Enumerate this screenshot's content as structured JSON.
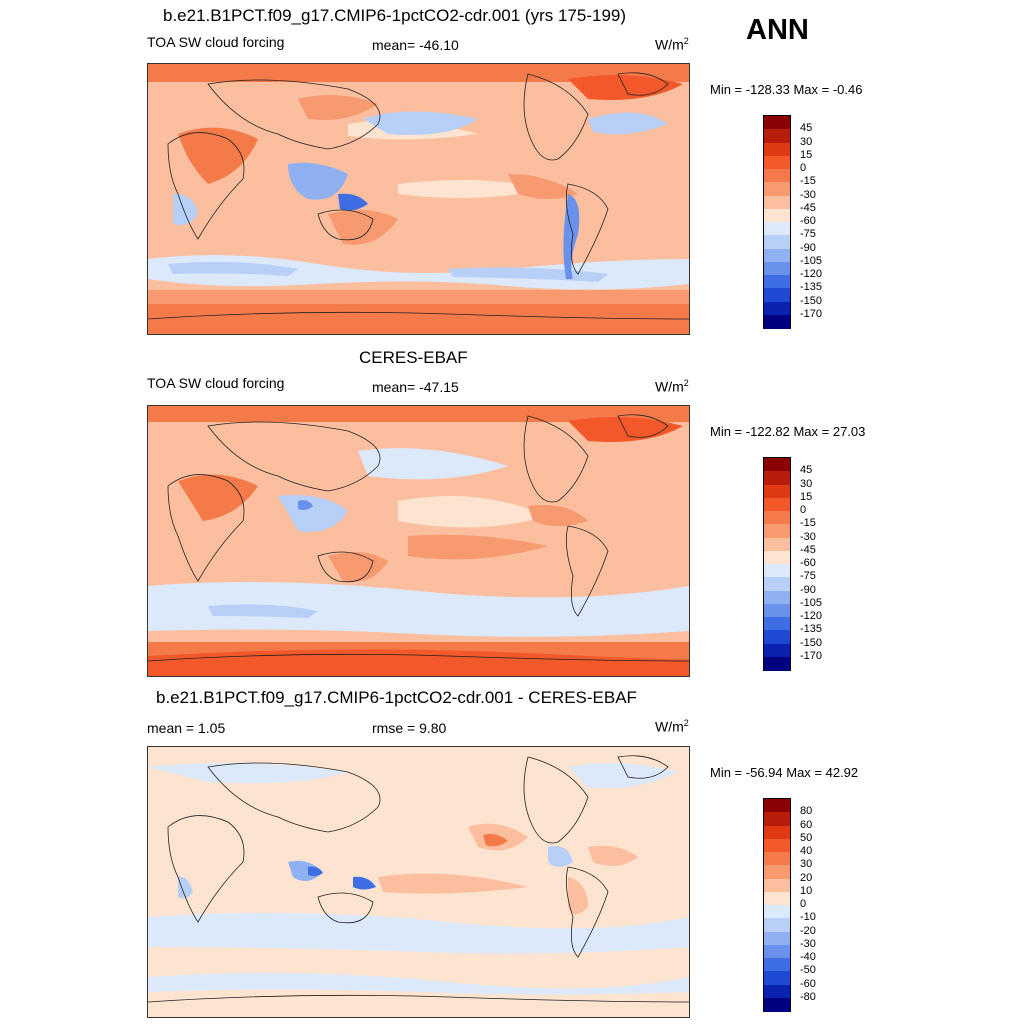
{
  "season": "ANN",
  "panels": [
    {
      "id": "model",
      "title": "b.e21.B1PCT.f09_g17.CMIP6-1pctCO2-cdr.001 (yrs 175-199)",
      "left_label": "TOA SW cloud forcing",
      "center_label": "mean= -46.10",
      "units_base": "W/m",
      "units_exp": "2",
      "minmax": "Min = -128.33 Max =  -0.46",
      "colorbar": {
        "labels": [
          "45",
          "30",
          "15",
          "0",
          "-15",
          "-30",
          "-45",
          "-60",
          "-75",
          "-90",
          "-105",
          "-120",
          "-135",
          "-150",
          "-170"
        ],
        "colors": [
          "#8b0000",
          "#b81c0a",
          "#e03a14",
          "#f2582a",
          "#f57a4a",
          "#f89a70",
          "#fbbe9e",
          "#fde4d0",
          "#dce9fb",
          "#b8cff7",
          "#8fb1f2",
          "#6a92ec",
          "#3f6ee4",
          "#1f48d4",
          "#0a22b0",
          "#000080"
        ]
      }
    },
    {
      "id": "obs",
      "title": "CERES-EBAF",
      "left_label": "TOA SW cloud forcing",
      "center_label": "mean= -47.15",
      "units_base": "W/m",
      "units_exp": "2",
      "minmax": "Min = -122.82 Max =  27.03",
      "colorbar": {
        "labels": [
          "45",
          "30",
          "15",
          "0",
          "-15",
          "-30",
          "-45",
          "-60",
          "-75",
          "-90",
          "-105",
          "-120",
          "-135",
          "-150",
          "-170"
        ],
        "colors": [
          "#8b0000",
          "#b81c0a",
          "#e03a14",
          "#f2582a",
          "#f57a4a",
          "#f89a70",
          "#fbbe9e",
          "#fde4d0",
          "#dce9fb",
          "#b8cff7",
          "#8fb1f2",
          "#6a92ec",
          "#3f6ee4",
          "#1f48d4",
          "#0a22b0",
          "#000080"
        ]
      }
    },
    {
      "id": "diff",
      "title": "b.e21.B1PCT.f09_g17.CMIP6-1pctCO2-cdr.001 - CERES-EBAF",
      "left_label": "mean =   1.05",
      "center_label": "rmse =   9.80",
      "units_base": "W/m",
      "units_exp": "2",
      "minmax": "Min = -56.94 Max =  42.92",
      "colorbar": {
        "labels": [
          "80",
          "60",
          "50",
          "40",
          "30",
          "20",
          "10",
          "0",
          "-10",
          "-20",
          "-30",
          "-40",
          "-50",
          "-60",
          "-80"
        ],
        "colors": [
          "#8b0000",
          "#b81c0a",
          "#e03a14",
          "#f2582a",
          "#f57a4a",
          "#f89a70",
          "#fbbe9e",
          "#fde4d0",
          "#dce9fb",
          "#b8cff7",
          "#8fb1f2",
          "#6a92ec",
          "#3f6ee4",
          "#1f48d4",
          "#0a22b0",
          "#000080"
        ]
      }
    }
  ]
}
